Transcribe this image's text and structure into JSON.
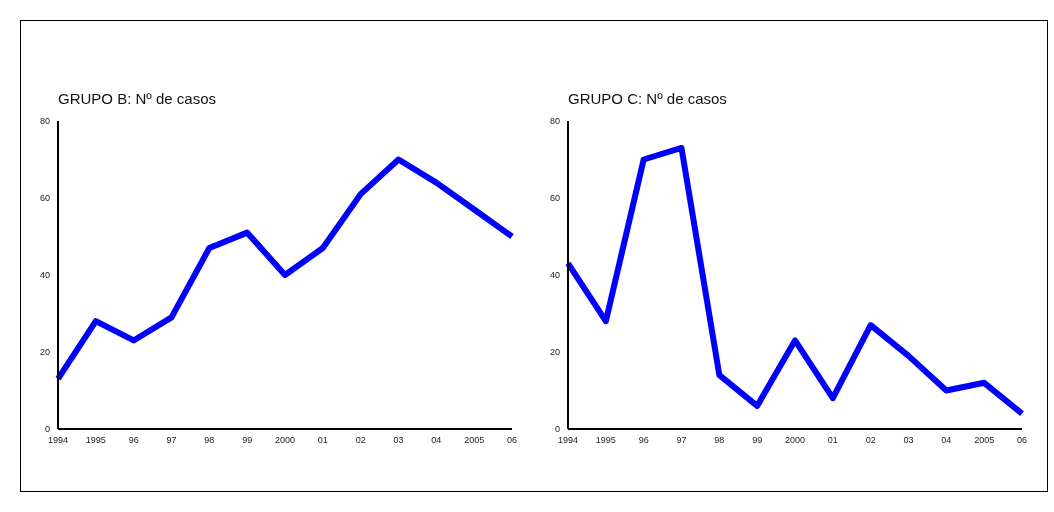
{
  "chart_data": [
    {
      "type": "line",
      "title": "GRUPO B: Nº de casos",
      "categories": [
        "1994",
        "1995",
        "96",
        "97",
        "98",
        "99",
        "2000",
        "01",
        "02",
        "03",
        "04",
        "2005",
        "06"
      ],
      "ylim": [
        0,
        80
      ],
      "yticks": [
        0,
        20,
        40,
        60,
        80
      ],
      "series": [
        {
          "color": "#0000ff",
          "values": [
            13,
            28,
            23,
            29,
            47,
            51,
            40,
            47,
            61,
            70,
            64,
            57,
            50
          ]
        }
      ]
    },
    {
      "type": "line",
      "title": "GRUPO C: Nº de casos",
      "categories": [
        "1994",
        "1995",
        "96",
        "97",
        "98",
        "99",
        "2000",
        "01",
        "02",
        "03",
        "04",
        "2005",
        "06"
      ],
      "ylim": [
        0,
        80
      ],
      "yticks": [
        0,
        20,
        40,
        60,
        80
      ],
      "series": [
        {
          "color": "#0000ff",
          "values": [
            43,
            28,
            70,
            73,
            14,
            6,
            23,
            8,
            27,
            19,
            10,
            12,
            4
          ]
        }
      ]
    }
  ]
}
